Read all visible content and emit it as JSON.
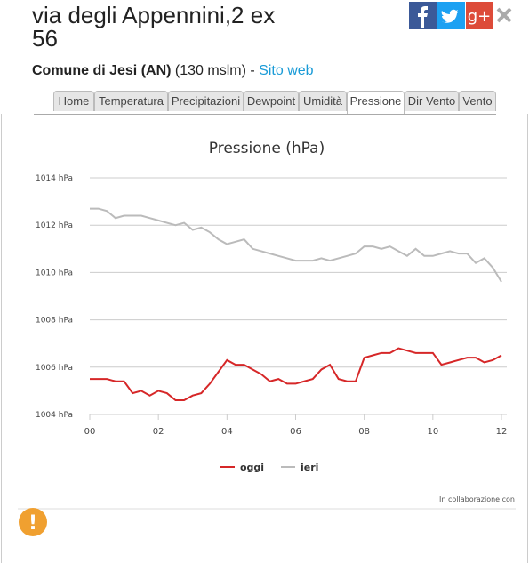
{
  "header": {
    "title": "via degli Appennini,2 ex 56",
    "location": "Comune di Jesi (AN)",
    "altitude": "(130 mslm)",
    "separator": "-",
    "link": "Sito web"
  },
  "tabs": [
    "Home",
    "Temperatura",
    "Precipitazioni",
    "Dewpoint",
    "Umidità",
    "Pressione",
    "Dir Vento",
    "Vento"
  ],
  "active_tab": "Pressione",
  "chart_data": {
    "type": "line",
    "title": "Pressione (hPa)",
    "x": [
      0,
      0.25,
      0.5,
      0.75,
      1,
      1.25,
      1.5,
      1.75,
      2,
      2.25,
      2.5,
      2.75,
      3,
      3.25,
      3.5,
      3.75,
      4,
      4.25,
      4.5,
      4.75,
      5,
      5.25,
      5.5,
      5.75,
      6,
      6.25,
      6.5,
      6.75,
      7,
      7.25,
      7.5,
      7.75,
      8,
      8.25,
      8.5,
      8.75,
      9,
      9.25,
      9.5,
      9.75,
      10,
      10.25,
      10.5,
      10.75,
      11,
      11.25,
      11.5,
      11.75,
      12
    ],
    "series": [
      {
        "name": "oggi",
        "color": "#d62728",
        "values": [
          1005.5,
          1005.5,
          1005.5,
          1005.4,
          1005.4,
          1004.9,
          1005.0,
          1004.8,
          1005.0,
          1004.9,
          1004.6,
          1004.6,
          1004.8,
          1004.9,
          1005.3,
          1005.8,
          1006.3,
          1006.1,
          1006.1,
          1005.9,
          1005.7,
          1005.4,
          1005.5,
          1005.3,
          1005.3,
          1005.4,
          1005.5,
          1005.9,
          1006.1,
          1005.5,
          1005.4,
          1005.4,
          1006.4,
          1006.5,
          1006.6,
          1006.6,
          1006.8,
          1006.7,
          1006.6,
          1006.6,
          1006.6,
          1006.1,
          1006.2,
          1006.3,
          1006.4,
          1006.4,
          1006.2,
          1006.3,
          1006.5
        ]
      },
      {
        "name": "ieri",
        "color": "#bbbbbb",
        "values": [
          1012.7,
          1012.7,
          1012.6,
          1012.3,
          1012.4,
          1012.4,
          1012.4,
          1012.3,
          1012.2,
          1012.1,
          1012.0,
          1012.1,
          1011.8,
          1011.9,
          1011.7,
          1011.4,
          1011.2,
          1011.3,
          1011.4,
          1011.0,
          1010.9,
          1010.8,
          1010.7,
          1010.6,
          1010.5,
          1010.5,
          1010.5,
          1010.6,
          1010.5,
          1010.6,
          1010.7,
          1010.8,
          1011.1,
          1011.1,
          1011.0,
          1011.1,
          1010.9,
          1010.7,
          1011.0,
          1010.7,
          1010.7,
          1010.8,
          1010.9,
          1010.8,
          1010.8,
          1010.4,
          1010.6,
          1010.2,
          1009.6
        ]
      }
    ],
    "xlim": [
      0,
      12
    ],
    "xticks": [
      {
        "value": 0,
        "label": "00"
      },
      {
        "value": 2,
        "label": "02"
      },
      {
        "value": 4,
        "label": "04"
      },
      {
        "value": 6,
        "label": "06"
      },
      {
        "value": 8,
        "label": "08"
      },
      10,
      12
    ],
    "ylim": [
      1004,
      1014
    ],
    "yticks": [
      {
        "value": 1004,
        "label": "1004 hPa"
      },
      {
        "value": 1006,
        "label": "1006 hPa"
      },
      {
        "value": 1008,
        "label": "1008 hPa"
      },
      {
        "value": 1010,
        "label": "1010 hPa"
      },
      {
        "value": 1012,
        "label": "1012 hPa"
      },
      {
        "value": 1014,
        "label": "1014 hPa"
      }
    ],
    "grid": true
  },
  "footer": {
    "credit": "In collaborazione con"
  }
}
